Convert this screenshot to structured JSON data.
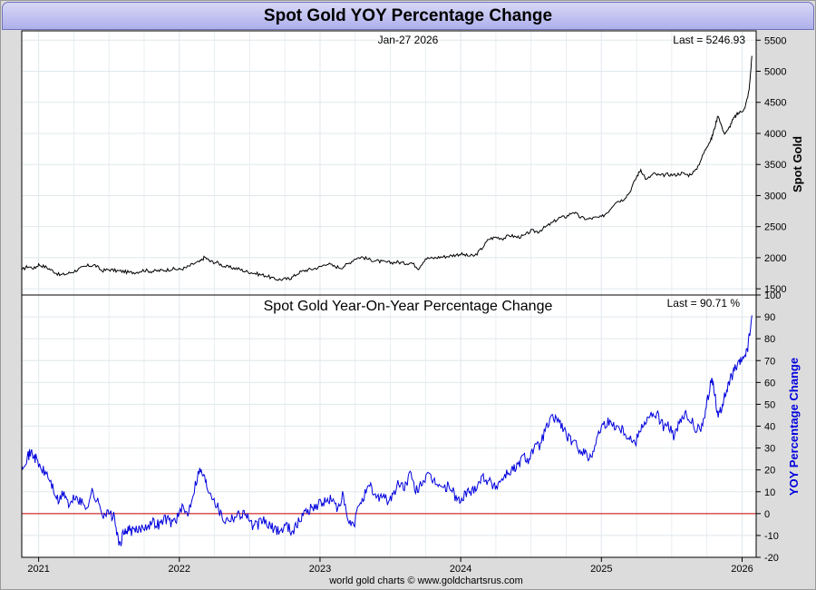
{
  "title": "Spot Gold YOY Percentage Change",
  "footer": "world gold charts © www.goldchartsrus.com",
  "colors": {
    "price_line": "#000000",
    "yoy_line": "#0000dd",
    "zero_line": "#cc0000",
    "yoy_axis_label": "#0000dd",
    "title_bar": "#b8baf0"
  },
  "chart_data": [
    {
      "type": "line",
      "title": "",
      "date_label": "Jan-27  2026",
      "last_label": "Last = 5246.93",
      "ylabel": "Spot Gold",
      "ylim": [
        1400,
        5650
      ],
      "yticks": [
        1500,
        2000,
        2500,
        3000,
        3500,
        4000,
        4500,
        5000,
        5500
      ],
      "xlim": [
        2020.88,
        2026.1
      ],
      "xticks": [
        "2021",
        "2022",
        "2023",
        "2024",
        "2025",
        "2026"
      ],
      "grid": true,
      "series": [
        {
          "x": [
            2020.88,
            2020.92,
            2020.97,
            2021.0,
            2021.05,
            2021.1,
            2021.15,
            2021.2,
            2021.25,
            2021.3,
            2021.35,
            2021.4,
            2021.45,
            2021.5,
            2021.55,
            2021.6,
            2021.65,
            2021.7,
            2021.75,
            2021.8,
            2021.85,
            2021.9,
            2021.95,
            2022.0,
            2022.05,
            2022.1,
            2022.15,
            2022.18,
            2022.22,
            2022.27,
            2022.32,
            2022.37,
            2022.42,
            2022.47,
            2022.52,
            2022.57,
            2022.62,
            2022.67,
            2022.72,
            2022.77,
            2022.8,
            2022.85,
            2022.9,
            2022.95,
            2023.0,
            2023.05,
            2023.1,
            2023.15,
            2023.2,
            2023.25,
            2023.3,
            2023.35,
            2023.4,
            2023.45,
            2023.5,
            2023.55,
            2023.6,
            2023.65,
            2023.7,
            2023.75,
            2023.8,
            2023.85,
            2023.9,
            2023.95,
            2024.0,
            2024.05,
            2024.1,
            2024.15,
            2024.2,
            2024.25,
            2024.3,
            2024.35,
            2024.4,
            2024.45,
            2024.5,
            2024.55,
            2024.6,
            2024.65,
            2024.7,
            2024.75,
            2024.8,
            2024.85,
            2024.9,
            2024.95,
            2025.0,
            2025.05,
            2025.1,
            2025.15,
            2025.2,
            2025.25,
            2025.28,
            2025.32,
            2025.37,
            2025.42,
            2025.47,
            2025.52,
            2025.57,
            2025.62,
            2025.67,
            2025.72,
            2025.75,
            2025.78,
            2025.8,
            2025.83,
            2025.87,
            2025.9,
            2025.93,
            2025.96,
            2025.99,
            2026.02,
            2026.05,
            2026.07
          ],
          "values": [
            1800,
            1860,
            1830,
            1890,
            1850,
            1790,
            1720,
            1740,
            1780,
            1830,
            1870,
            1880,
            1790,
            1810,
            1790,
            1780,
            1760,
            1770,
            1800,
            1780,
            1790,
            1800,
            1820,
            1810,
            1840,
            1900,
            1940,
            2010,
            1940,
            1920,
            1860,
            1840,
            1820,
            1780,
            1760,
            1730,
            1710,
            1660,
            1650,
            1660,
            1680,
            1760,
            1800,
            1820,
            1850,
            1910,
            1860,
            1840,
            1900,
            1990,
            2010,
            1970,
            1950,
            1930,
            1920,
            1930,
            1910,
            1920,
            1830,
            1990,
            1990,
            2010,
            2020,
            2040,
            2060,
            2030,
            2030,
            2150,
            2300,
            2330,
            2310,
            2360,
            2330,
            2350,
            2430,
            2420,
            2490,
            2560,
            2640,
            2660,
            2740,
            2650,
            2620,
            2640,
            2650,
            2750,
            2900,
            2930,
            3050,
            3300,
            3420,
            3250,
            3350,
            3320,
            3340,
            3330,
            3360,
            3330,
            3400,
            3640,
            3800,
            3900,
            4050,
            4300,
            4000,
            4050,
            4200,
            4300,
            4350,
            4400,
            4700,
            5246.93
          ]
        }
      ]
    },
    {
      "type": "line",
      "title": "Spot Gold Year-On-Year Percentage Change",
      "last_label": "Last = 90.71 %",
      "ylabel": "YOY Percentage Change",
      "ylim": [
        -20,
        100
      ],
      "yticks": [
        -20,
        -10,
        0,
        10,
        20,
        30,
        40,
        50,
        60,
        70,
        80,
        90,
        100
      ],
      "xlim": [
        2020.88,
        2026.1
      ],
      "xticks": [
        "2021",
        "2022",
        "2023",
        "2024",
        "2025",
        "2026"
      ],
      "grid": true,
      "reference_line": 0,
      "series": [
        {
          "x": [
            2020.88,
            2020.92,
            2020.95,
            2020.98,
            2021.02,
            2021.06,
            2021.1,
            2021.14,
            2021.18,
            2021.22,
            2021.26,
            2021.3,
            2021.34,
            2021.38,
            2021.42,
            2021.46,
            2021.5,
            2021.54,
            2021.57,
            2021.6,
            2021.63,
            2021.66,
            2021.7,
            2021.74,
            2021.78,
            2021.82,
            2021.86,
            2021.9,
            2021.94,
            2021.98,
            2022.02,
            2022.06,
            2022.1,
            2022.14,
            2022.17,
            2022.2,
            2022.24,
            2022.28,
            2022.32,
            2022.36,
            2022.4,
            2022.44,
            2022.48,
            2022.52,
            2022.56,
            2022.6,
            2022.64,
            2022.68,
            2022.72,
            2022.76,
            2022.8,
            2022.84,
            2022.88,
            2022.92,
            2022.96,
            2023.0,
            2023.04,
            2023.08,
            2023.12,
            2023.16,
            2023.2,
            2023.24,
            2023.28,
            2023.32,
            2023.36,
            2023.4,
            2023.44,
            2023.48,
            2023.52,
            2023.56,
            2023.6,
            2023.64,
            2023.68,
            2023.72,
            2023.76,
            2023.8,
            2023.84,
            2023.88,
            2023.92,
            2023.96,
            2024.0,
            2024.04,
            2024.08,
            2024.12,
            2024.16,
            2024.2,
            2024.24,
            2024.28,
            2024.32,
            2024.36,
            2024.4,
            2024.44,
            2024.48,
            2024.52,
            2024.56,
            2024.6,
            2024.64,
            2024.68,
            2024.72,
            2024.76,
            2024.8,
            2024.84,
            2024.88,
            2024.92,
            2024.96,
            2025.0,
            2025.04,
            2025.08,
            2025.12,
            2025.16,
            2025.2,
            2025.24,
            2025.28,
            2025.32,
            2025.36,
            2025.4,
            2025.44,
            2025.48,
            2025.52,
            2025.56,
            2025.6,
            2025.64,
            2025.68,
            2025.72,
            2025.75,
            2025.78,
            2025.8,
            2025.83,
            2025.86,
            2025.89,
            2025.92,
            2025.95,
            2025.98,
            2026.01,
            2026.04,
            2026.07
          ],
          "values": [
            22,
            26,
            28,
            25,
            20,
            18,
            12,
            5,
            10,
            3,
            8,
            5,
            3,
            10,
            5,
            0,
            0,
            -2,
            -15,
            -10,
            -7,
            -8,
            -8,
            -6,
            -5,
            -4,
            -5,
            -2,
            -4,
            -2,
            2,
            0,
            10,
            20,
            18,
            12,
            8,
            2,
            -3,
            -2,
            -1,
            0,
            0,
            -6,
            -5,
            -3,
            -6,
            -7,
            -8,
            -5,
            -8,
            -5,
            0,
            2,
            3,
            5,
            5,
            7,
            2,
            8,
            -4,
            -6,
            5,
            9,
            12,
            7,
            9,
            6,
            8,
            14,
            12,
            18,
            10,
            14,
            17,
            15,
            14,
            11,
            13,
            8,
            5,
            10,
            10,
            14,
            17,
            15,
            12,
            15,
            18,
            20,
            21,
            26,
            25,
            30,
            31,
            38,
            43,
            44,
            40,
            35,
            32,
            30,
            28,
            25,
            33,
            40,
            42,
            41,
            40,
            38,
            35,
            32,
            40,
            43,
            45,
            45,
            40,
            40,
            35,
            42,
            45,
            42,
            38,
            40,
            50,
            62,
            58,
            44,
            50,
            56,
            62,
            66,
            68,
            72,
            75,
            90.71
          ]
        }
      ]
    }
  ]
}
